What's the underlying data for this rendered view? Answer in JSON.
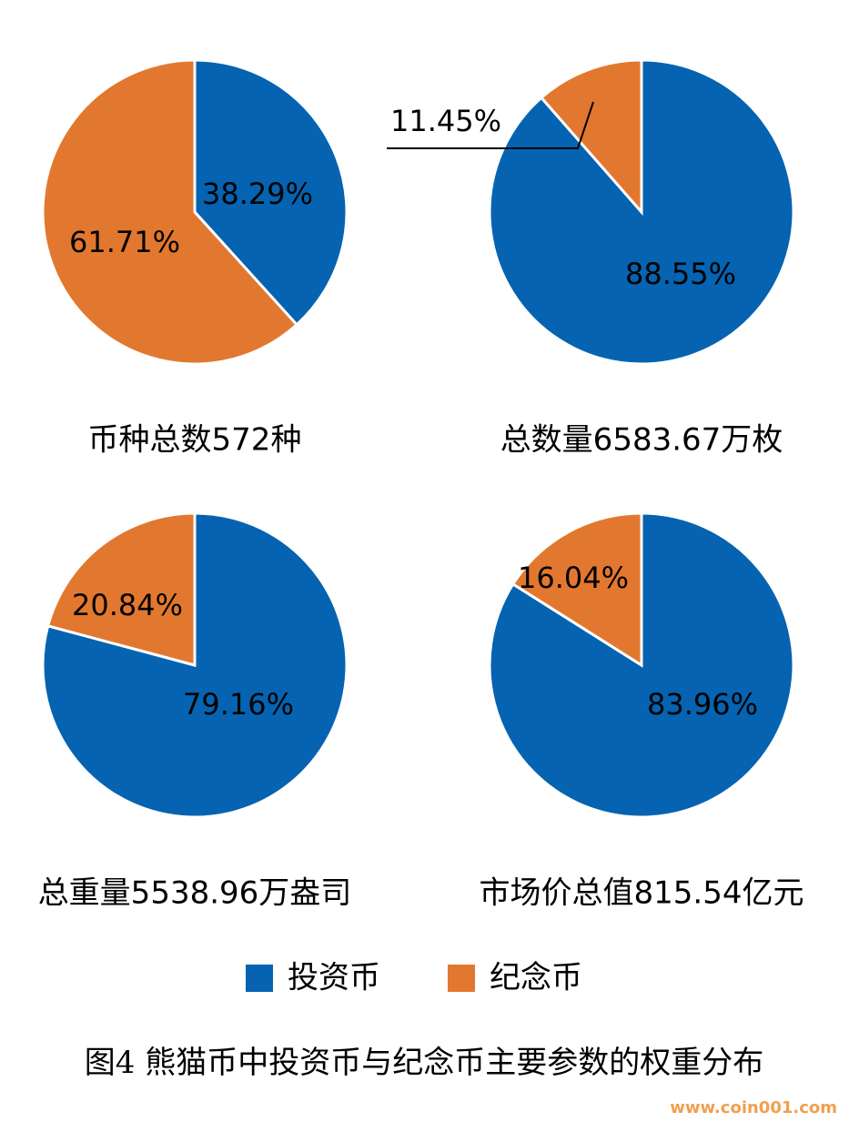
{
  "chart_data": [
    {
      "type": "pie",
      "title": "币种总数572种",
      "categories": [
        "投资币",
        "纪念币"
      ],
      "values": [
        38.29,
        61.71
      ],
      "value_labels": [
        "38.29%",
        "61.71%"
      ],
      "colors": [
        "#0563b1",
        "#e2782f"
      ]
    },
    {
      "type": "pie",
      "title": "总数量6583.67万枚",
      "categories": [
        "投资币",
        "纪念币"
      ],
      "values": [
        88.55,
        11.45
      ],
      "value_labels": [
        "88.55%",
        "11.45%"
      ],
      "colors": [
        "#0563b1",
        "#e2782f"
      ]
    },
    {
      "type": "pie",
      "title": "总重量5538.96万盎司",
      "categories": [
        "投资币",
        "纪念币"
      ],
      "values": [
        79.16,
        20.84
      ],
      "value_labels": [
        "79.16%",
        "20.84%"
      ],
      "colors": [
        "#0563b1",
        "#e2782f"
      ]
    },
    {
      "type": "pie",
      "title": "市场价总值815.54亿元",
      "categories": [
        "投资币",
        "纪念币"
      ],
      "values": [
        83.96,
        16.04
      ],
      "value_labels": [
        "83.96%",
        "16.04%"
      ],
      "colors": [
        "#0563b1",
        "#e2782f"
      ]
    }
  ],
  "caption": "图4 熊猫币中投资币与纪念币主要参数的权重分布",
  "watermark": "www.coin001.com"
}
